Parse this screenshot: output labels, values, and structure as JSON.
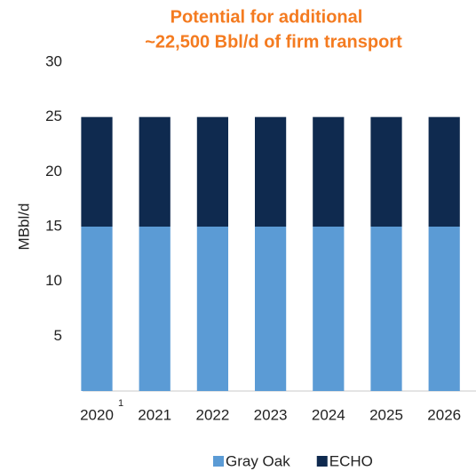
{
  "chart_data": {
    "type": "stacked_bar",
    "title": [
      "Potential for additional",
      "~22,500 Bbl/d of firm transport"
    ],
    "y_label": "MBbl/d",
    "categories": [
      "2020",
      "2021",
      "2022",
      "2023",
      "2024",
      "2025",
      "2026"
    ],
    "footnote_marker": "1",
    "series": [
      {
        "name": "Gray Oak",
        "color": "#5b9bd5",
        "values": [
          15,
          15,
          15,
          15,
          15,
          15,
          15
        ]
      },
      {
        "name": "ECHO",
        "color": "#0f2a4f",
        "values": [
          10,
          10,
          10,
          10,
          10,
          10,
          10
        ]
      }
    ],
    "ylim": [
      0,
      30
    ],
    "yticks": [
      5,
      10,
      15,
      20,
      25,
      30
    ],
    "grid": false,
    "legend": "bottom"
  }
}
